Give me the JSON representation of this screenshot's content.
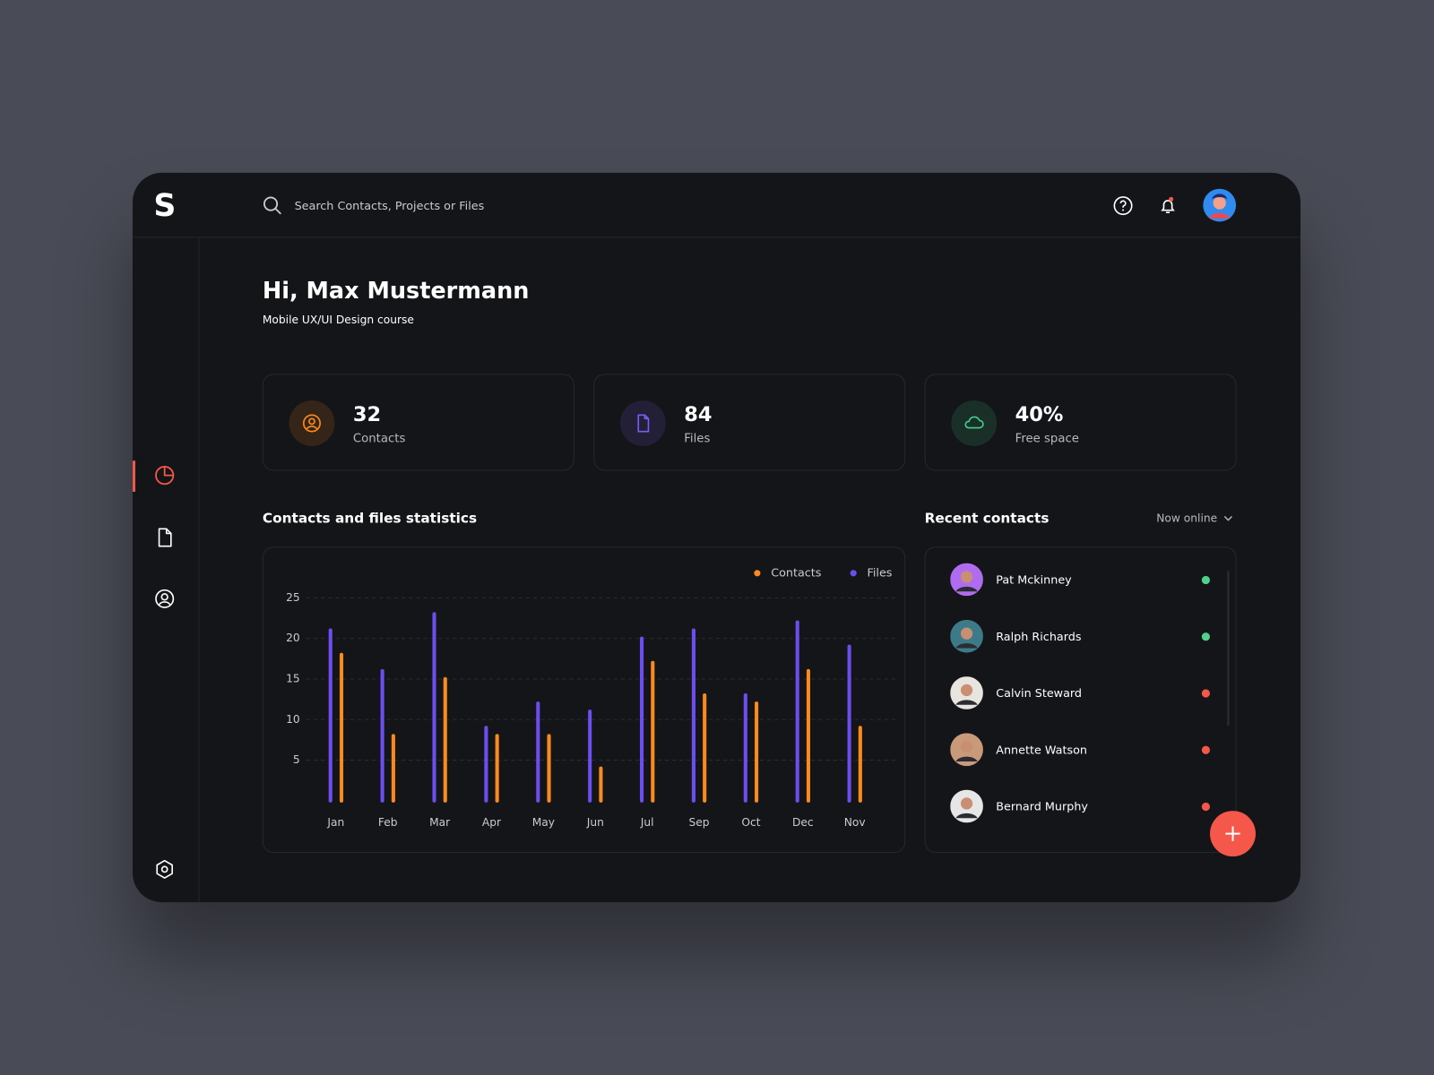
{
  "logo": "S",
  "search": {
    "placeholder": "Search Contacts, Projects or Files"
  },
  "greeting": {
    "title": "Hi, Max Mustermann",
    "subtitle": "Mobile UX/UI Design course"
  },
  "stats": [
    {
      "value": "32",
      "label": "Contacts",
      "color": "#ff8a1f"
    },
    {
      "value": "84",
      "label": "Files",
      "color": "#7a5cf5"
    },
    {
      "value": "40%",
      "label": "Free space",
      "color": "#3fcf8e"
    }
  ],
  "chart_data": {
    "type": "bar",
    "title": "Contacts and files statistics",
    "categories": [
      "Jan",
      "Feb",
      "Mar",
      "Apr",
      "May",
      "Jun",
      "Jul",
      "Sep",
      "Oct",
      "Dec",
      "Nov"
    ],
    "series": [
      {
        "name": "Contacts",
        "color": "#ff8a1f",
        "values": [
          18,
          8,
          15,
          8,
          8,
          4,
          17,
          13,
          12,
          16,
          9
        ]
      },
      {
        "name": "Files",
        "color": "#6c4ef0",
        "values": [
          21,
          16,
          23,
          9,
          12,
          11,
          20,
          21,
          13,
          22,
          19
        ]
      }
    ],
    "ylim": [
      0,
      25
    ],
    "yticks": [
      5,
      10,
      15,
      20,
      25
    ],
    "grid": true,
    "legend": "top-right"
  },
  "recent": {
    "title": "Recent contacts",
    "filter": "Now online",
    "contacts": [
      {
        "name": "Pat Mckinney",
        "status": "online"
      },
      {
        "name": "Ralph Richards",
        "status": "online"
      },
      {
        "name": "Calvin Steward",
        "status": "offline"
      },
      {
        "name": "Annette Watson",
        "status": "offline"
      },
      {
        "name": "Bernard Murphy",
        "status": "offline"
      }
    ]
  }
}
